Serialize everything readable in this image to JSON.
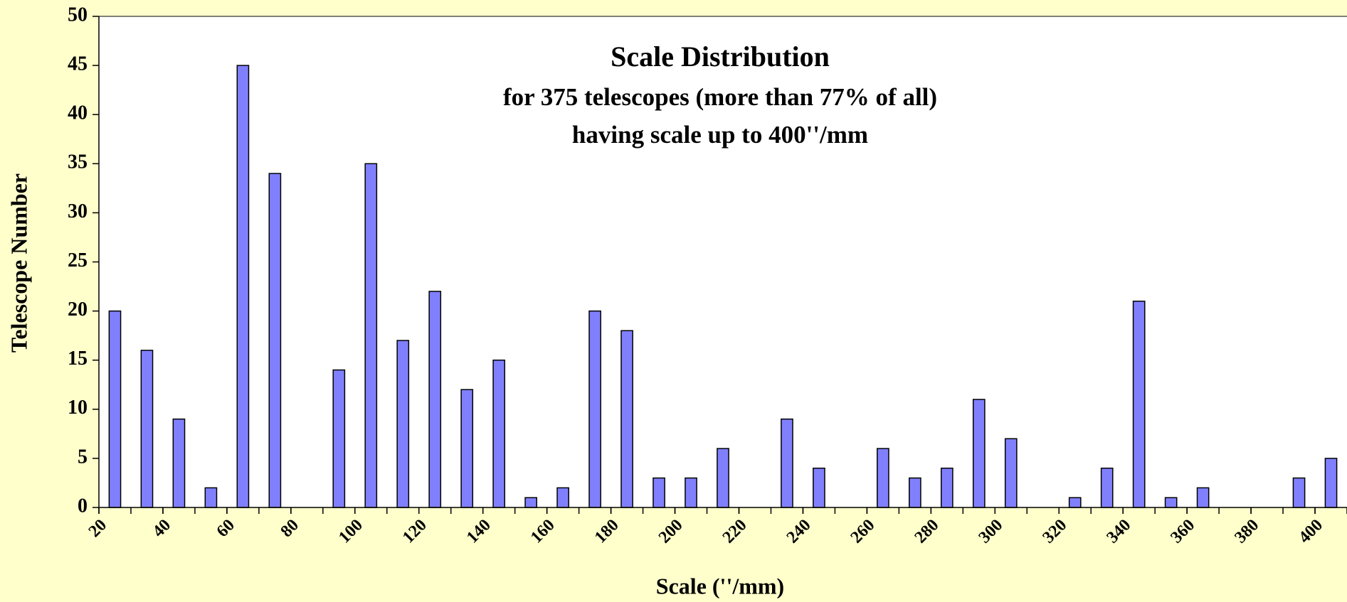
{
  "chart_data": {
    "type": "histogram",
    "title": "Scale Distribution",
    "subtitle": [
      "for 375 telescopes (more than 77% of all)",
      "having scale up to 400''/mm"
    ],
    "x_label": "Scale (''/mm)",
    "y_label": "Telescope Number",
    "bins": [
      20,
      30,
      40,
      50,
      60,
      70,
      80,
      90,
      100,
      110,
      120,
      130,
      140,
      150,
      160,
      170,
      180,
      190,
      200,
      210,
      220,
      230,
      240,
      250,
      260,
      270,
      280,
      290,
      300,
      310,
      320,
      330,
      340,
      350,
      360,
      370,
      380,
      390,
      400,
      410
    ],
    "values": [
      20,
      16,
      9,
      2,
      45,
      34,
      0,
      14,
      35,
      17,
      22,
      12,
      15,
      1,
      2,
      20,
      18,
      3,
      3,
      6,
      0,
      9,
      4,
      0,
      6,
      3,
      4,
      11,
      7,
      0,
      1,
      4,
      21,
      1,
      2,
      0,
      0,
      3,
      5
    ],
    "color": "#8080ff",
    "xlim": [
      20,
      410
    ],
    "xticks": [
      20,
      40,
      60,
      80,
      100,
      120,
      140,
      160,
      180,
      200,
      220,
      240,
      260,
      280,
      300,
      320,
      340,
      360,
      380,
      400
    ],
    "ylim": [
      0,
      50
    ],
    "yticks": [
      0,
      5,
      10,
      15,
      20,
      25,
      30,
      35,
      40,
      45,
      50
    ]
  }
}
